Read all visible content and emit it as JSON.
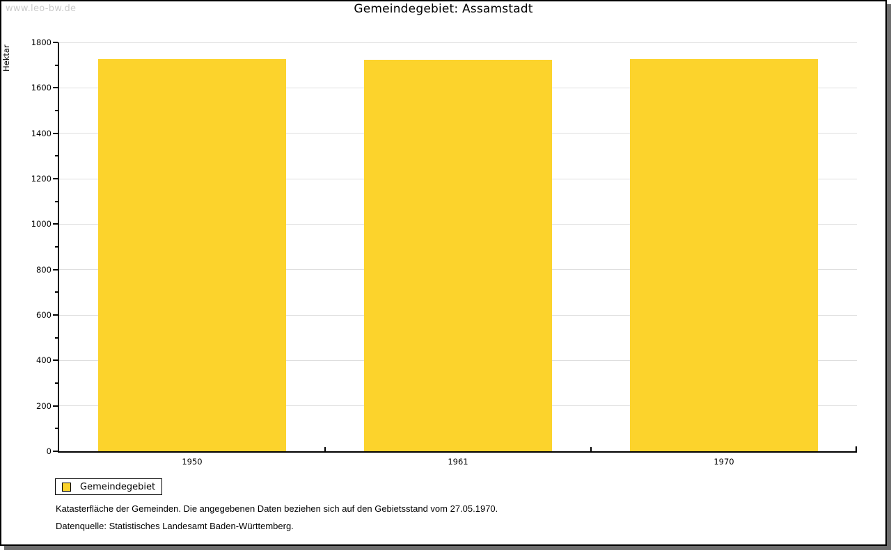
{
  "watermark": "www.leo-bw.de",
  "title": "Gemeindegebiet: Assamstadt",
  "chart_data": {
    "type": "bar",
    "title": "Gemeindegebiet: Assamstadt",
    "categories": [
      "1950",
      "1961",
      "1970"
    ],
    "series": [
      {
        "name": "Gemeindegebiet",
        "values": [
          1725,
          1722,
          1725
        ]
      }
    ],
    "xlabel": "",
    "ylabel": "Hektar",
    "ylim": [
      0,
      1800
    ],
    "ytick_major_step": 200,
    "ytick_minor_step": 100,
    "grid": "horizontal-major",
    "legend_position": "bottom-left-outside",
    "bar_color": "#FCD32C"
  },
  "legend": {
    "items": [
      {
        "label": "Gemeindegebiet",
        "color": "#FCD32C"
      }
    ]
  },
  "footnotes": {
    "line1": "Katasterfläche der Gemeinden. Die angegebenen Daten beziehen sich auf den Gebietsstand vom 27.05.1970.",
    "line2": "Datenquelle: Statistisches Landesamt Baden-Württemberg."
  },
  "colors": {
    "bar": "#FCD32C",
    "grid": "#DEDEDE",
    "axis": "#000000",
    "text": "#000000",
    "watermark": "#CBCBCB",
    "frame_border": "#000000",
    "frame_shadow": "#6E6E6E"
  }
}
